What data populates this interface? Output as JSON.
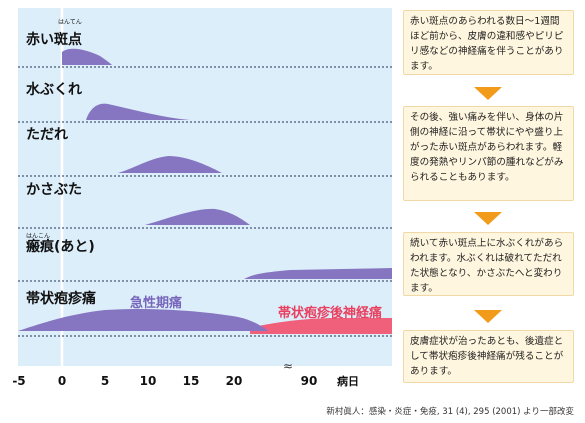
{
  "rows": [
    {
      "label": "赤い斑点",
      "ruby": "はんてん"
    },
    {
      "label": "水ぶくれ"
    },
    {
      "label": "ただれ"
    },
    {
      "label": "かさぶた"
    },
    {
      "label": "瘢痕(あと)",
      "ruby": "はんこん"
    },
    {
      "label": "帯状疱疹痛"
    }
  ],
  "pain_labels": {
    "acute": "急性期痛",
    "postherpetic": "帯状疱疹後神経痛"
  },
  "axis": {
    "ticks": [
      "-5",
      "0",
      "5",
      "10",
      "15",
      "20",
      "90"
    ],
    "break_mark": "≈",
    "unit": "病日"
  },
  "boxes": [
    {
      "text": "赤い斑点のあらわれる数日〜1週間ほど前から、皮膚の違和感やピリピリ感などの神経痛を伴うことがあります。"
    },
    {
      "text": "その後、強い痛みを伴い、身体の片側の神経に沿って帯状にやや盛り上がった赤い斑点があらわれます。軽度の発熱やリンパ節の腫れなどがみられることもあります。"
    },
    {
      "text": "続いて赤い斑点上に水ぶくれがあらわれます。水ぶくれは破れてただれた状態となり、かさぶたへと変わります。"
    },
    {
      "text": "皮膚症状が治ったあとも、後遺症として帯状疱疹後神経痛が残ることがあります。"
    }
  ],
  "caption": "新村眞人：感染・炎症・免疫, 31 (4), 295 (2001) より一部改変",
  "colors": {
    "band": "#ddeefb",
    "shape": "#8676c1",
    "pain_pink": "#f0607a",
    "arrow": "#f29a1a",
    "box_bg": "#fff6df"
  }
}
